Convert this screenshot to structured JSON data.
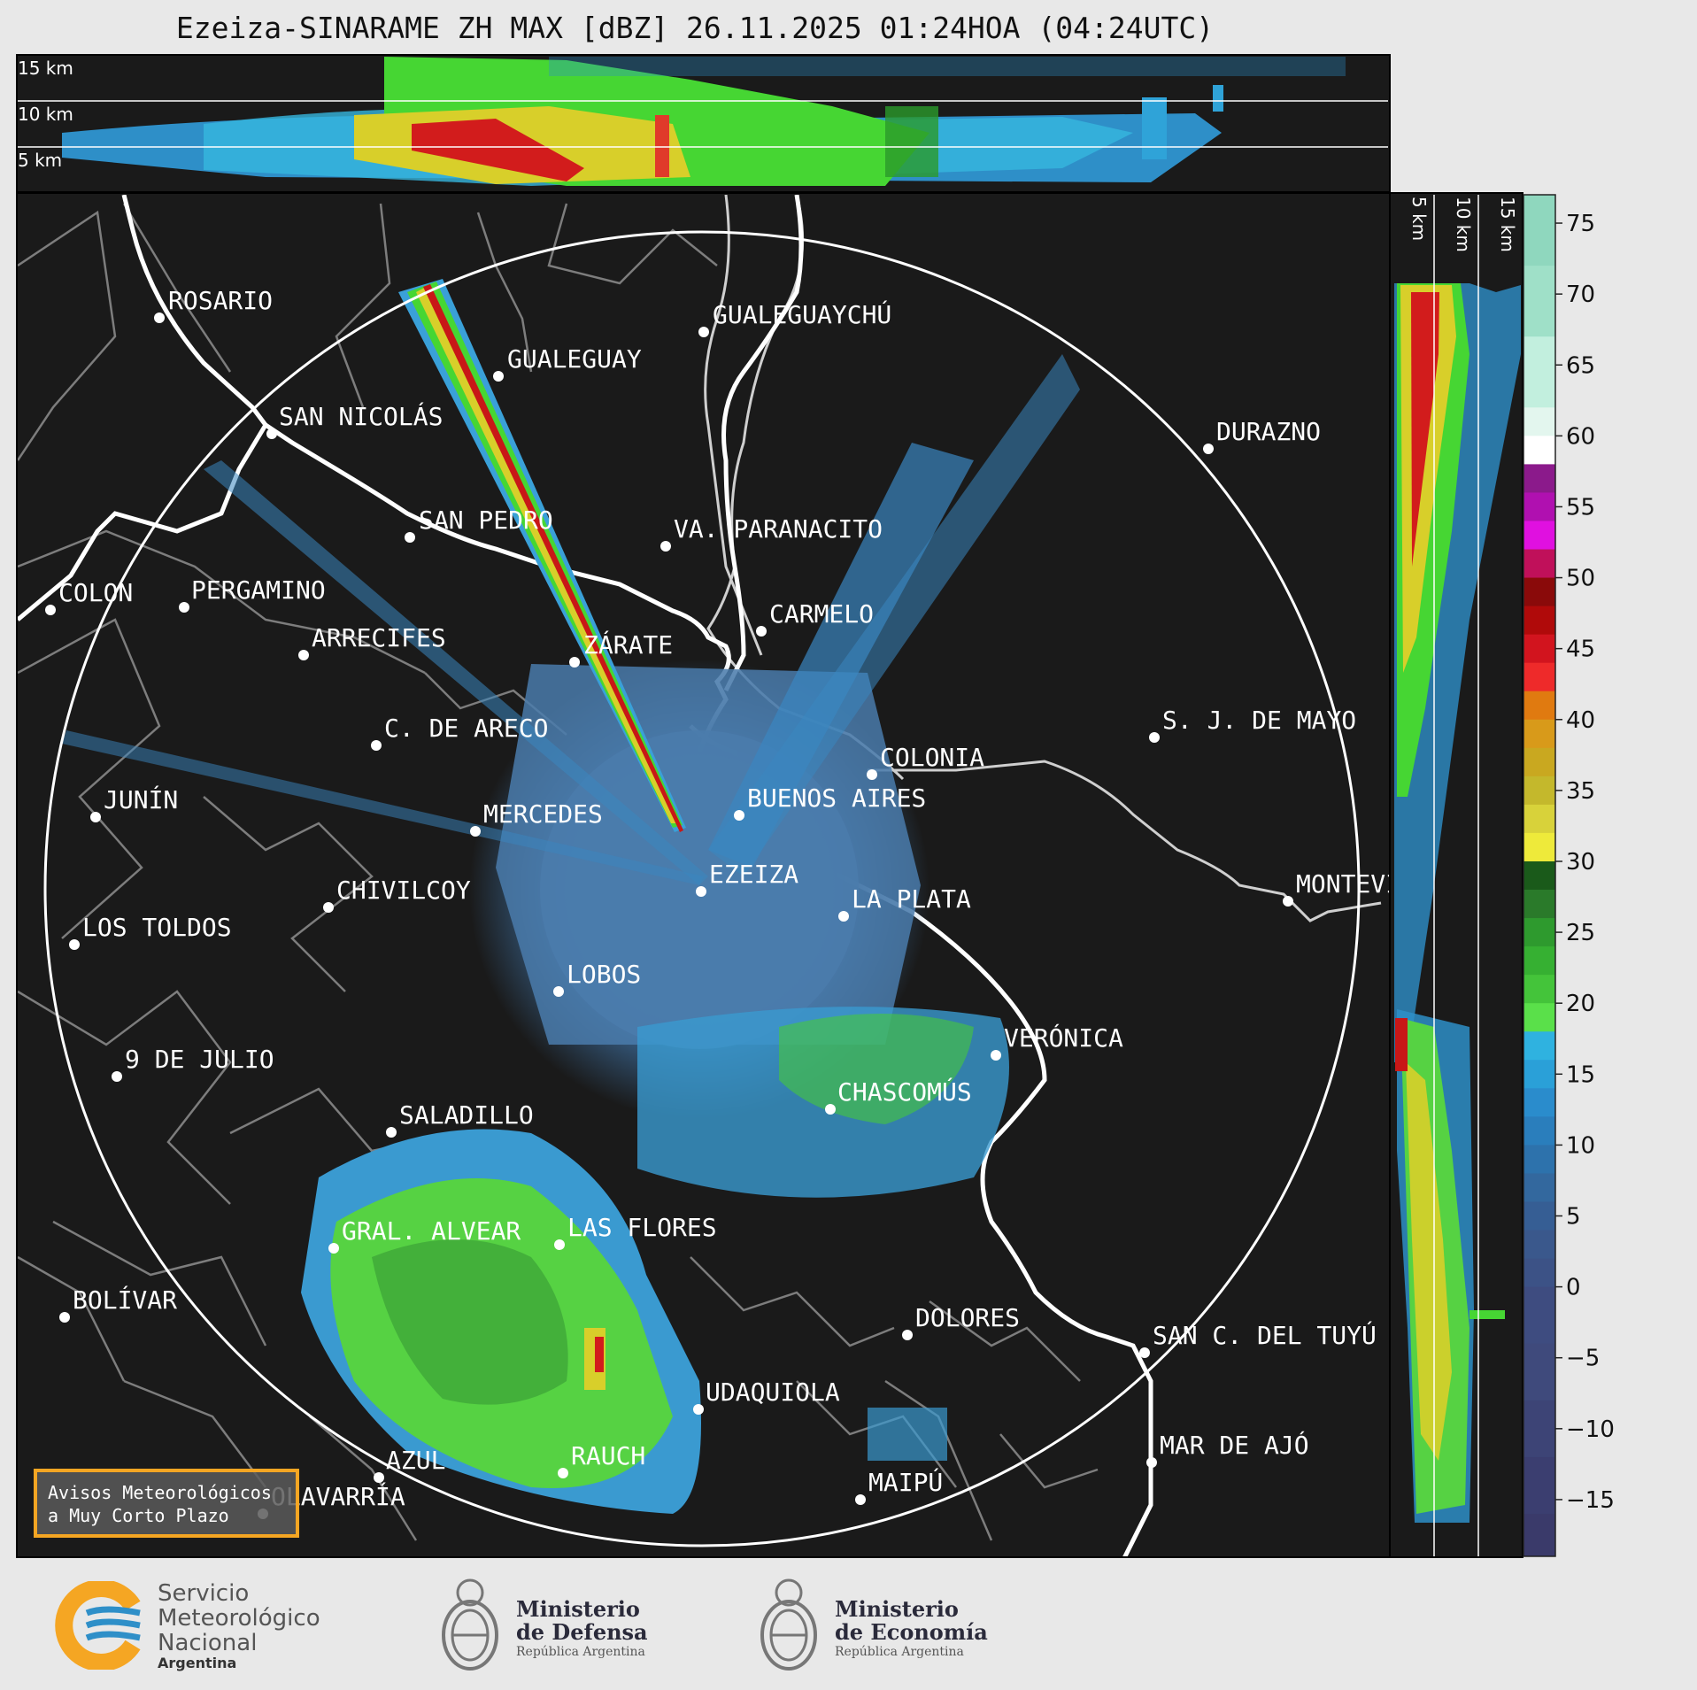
{
  "title": "Ezeiza-SINARAME ZH MAX [dBZ] 26.11.2025 01:24HOA (04:24UTC)",
  "top_panel": {
    "height_labels": [
      "15 km",
      "10 km",
      "5 km"
    ]
  },
  "side_panel": {
    "height_labels": [
      "5 km",
      "10 km",
      "15 km"
    ]
  },
  "colorbar": {
    "ticks": [
      "75",
      "70",
      "65",
      "60",
      "55",
      "50",
      "45",
      "40",
      "35",
      "30",
      "25",
      "20",
      "15",
      "10",
      "5",
      "0",
      "−5",
      "−10",
      "−15"
    ]
  },
  "cities": [
    {
      "name": "ROSARIO"
    },
    {
      "name": "GUALEGUAYCHÚ"
    },
    {
      "name": "GUALEGUAY"
    },
    {
      "name": "SAN NICOLÁS"
    },
    {
      "name": "DURAZNO"
    },
    {
      "name": "SAN PEDRO"
    },
    {
      "name": "VA. PARANACITO"
    },
    {
      "name": "COLON"
    },
    {
      "name": "PERGAMINO"
    },
    {
      "name": "CARMELO"
    },
    {
      "name": "ARRECIFES"
    },
    {
      "name": "ZÁRATE"
    },
    {
      "name": "C. DE ARECO"
    },
    {
      "name": "S. J. DE MAYO"
    },
    {
      "name": "COLONIA"
    },
    {
      "name": "JUNÍN"
    },
    {
      "name": "BUENOS AIRES"
    },
    {
      "name": "MERCEDES"
    },
    {
      "name": "EZEIZA"
    },
    {
      "name": "MONTEVIDEO"
    },
    {
      "name": "CHIVILCOY"
    },
    {
      "name": "LA PLATA"
    },
    {
      "name": "LOS TOLDOS"
    },
    {
      "name": "LOBOS"
    },
    {
      "name": "VERÓNICA"
    },
    {
      "name": "9 DE JULIO"
    },
    {
      "name": "CHASCOMÚS"
    },
    {
      "name": "SALADILLO"
    },
    {
      "name": "GRAL. ALVEAR"
    },
    {
      "name": "LAS FLORES"
    },
    {
      "name": "BOLÍVAR"
    },
    {
      "name": "DOLORES"
    },
    {
      "name": "SAN C. DEL TUYÚ"
    },
    {
      "name": "UDAQUIOLA"
    },
    {
      "name": "MAR DE AJÓ"
    },
    {
      "name": "AZUL"
    },
    {
      "name": "RAUCH"
    },
    {
      "name": "OLAVARRÍA"
    },
    {
      "name": "MAIPÚ"
    }
  ],
  "avisos": {
    "line1": "Avisos Meteorológicos",
    "line2": "a Muy Corto Plazo"
  },
  "logos": {
    "smn": {
      "line1": "Servicio",
      "line2": "Meteorológico",
      "line3": "Nacional",
      "line4": "Argentina"
    },
    "defensa": {
      "line1": "Ministerio",
      "line2": "de Defensa",
      "line3": "República Argentina"
    },
    "economia": {
      "line1": "Ministerio",
      "line2": "de Economía",
      "line3": "República Argentina"
    }
  },
  "colors": {
    "background": "#1a1a1a",
    "ring": "#ffffff",
    "accent": "#f5a623"
  }
}
